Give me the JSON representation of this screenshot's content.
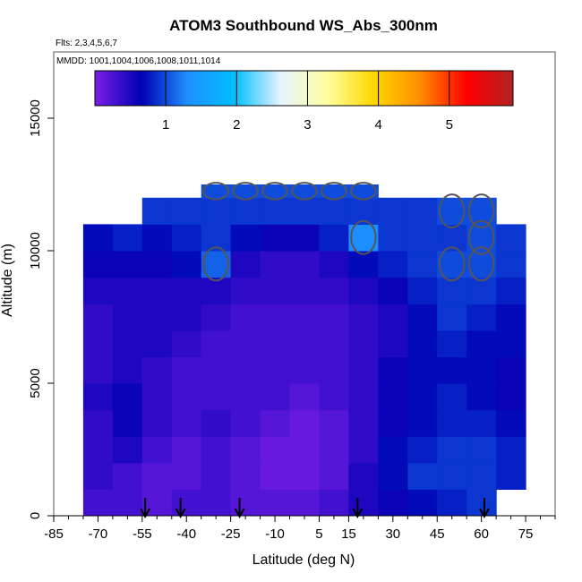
{
  "chart_data": {
    "type": "heatmap",
    "title": "ATOM3 Southbound WS_Abs_300nm",
    "subtitle_flights": "Flts: 2,3,4,5,6,7",
    "subtitle_dates": "MMDD: 1001,1004,1006,1008,1011,1014",
    "xlabel": "Latitude (deg N)",
    "ylabel": "Altitude (m)",
    "xlim": [
      -85,
      85
    ],
    "ylim": [
      0,
      17500
    ],
    "x_tick_labels": [
      "-85",
      "-70",
      "-55",
      "-40",
      "-25",
      "-10",
      "5",
      "15",
      "30",
      "45",
      "60",
      "75"
    ],
    "x_tick_values": [
      -85,
      -70,
      -55,
      -40,
      -25,
      -10,
      5,
      15,
      30,
      45,
      60,
      75
    ],
    "y_tick_labels": [
      "0",
      "5000",
      "10000",
      "15000"
    ],
    "y_tick_values": [
      0,
      5000,
      10000,
      15000
    ],
    "colorbar": {
      "min": 0,
      "max": 5.9,
      "tick_labels": [
        "1",
        "2",
        "3",
        "4",
        "5"
      ],
      "tick_values": [
        1,
        2,
        3,
        4,
        5
      ],
      "colors": [
        "#7a1fe6",
        "#0000b4",
        "#1e90ff",
        "#00bfff",
        "#e6f4ff",
        "#ffffa0",
        "#ffd700",
        "#ff8c00",
        "#ff0000",
        "#b22222"
      ]
    },
    "field": {
      "latitudes": [
        -70,
        -60,
        -50,
        -40,
        -30,
        -20,
        -10,
        0,
        10,
        20,
        30,
        40,
        50,
        60,
        70
      ],
      "altitude_bands": [
        {
          "alt_range": [
            0,
            1000
          ],
          "values": [
            0.3,
            0.3,
            0.2,
            0.3,
            0.3,
            0.2,
            0.2,
            0.2,
            0.3,
            0.5,
            0.6,
            0.7,
            0.8,
            0.9,
            null
          ]
        },
        {
          "alt_range": [
            1000,
            2000
          ],
          "values": [
            0.4,
            0.3,
            0.2,
            0.2,
            0.3,
            0.2,
            0.1,
            0.1,
            0.2,
            0.5,
            0.7,
            0.9,
            0.9,
            0.9,
            0.8
          ]
        },
        {
          "alt_range": [
            2000,
            3000
          ],
          "values": [
            0.4,
            0.5,
            0.3,
            0.2,
            0.3,
            0.2,
            0.1,
            0.1,
            0.2,
            0.4,
            0.7,
            0.8,
            0.9,
            0.9,
            0.8
          ]
        },
        {
          "alt_range": [
            3000,
            4000
          ],
          "values": [
            0.4,
            0.6,
            0.4,
            0.3,
            0.4,
            0.3,
            0.2,
            0.1,
            0.2,
            0.4,
            0.6,
            0.7,
            0.8,
            0.8,
            0.7
          ]
        },
        {
          "alt_range": [
            4000,
            5000
          ],
          "values": [
            0.5,
            0.6,
            0.4,
            0.3,
            0.3,
            0.3,
            0.3,
            0.2,
            0.3,
            0.4,
            0.6,
            0.7,
            0.8,
            0.7,
            0.6
          ]
        },
        {
          "alt_range": [
            5000,
            6000
          ],
          "values": [
            0.4,
            0.5,
            0.4,
            0.3,
            0.3,
            0.3,
            0.3,
            0.3,
            0.3,
            0.4,
            0.6,
            0.7,
            0.7,
            0.7,
            0.6
          ]
        },
        {
          "alt_range": [
            6000,
            7000
          ],
          "values": [
            0.4,
            0.5,
            0.5,
            0.4,
            0.3,
            0.3,
            0.3,
            0.3,
            0.3,
            0.4,
            0.5,
            0.7,
            0.8,
            0.7,
            0.7
          ]
        },
        {
          "alt_range": [
            7000,
            8000
          ],
          "values": [
            0.4,
            0.5,
            0.5,
            0.5,
            0.4,
            0.3,
            0.3,
            0.3,
            0.3,
            0.4,
            0.5,
            0.7,
            0.9,
            0.8,
            0.7
          ]
        },
        {
          "alt_range": [
            8000,
            9000
          ],
          "values": [
            0.5,
            0.5,
            0.5,
            0.5,
            0.5,
            0.4,
            0.4,
            0.4,
            0.4,
            0.5,
            0.6,
            0.8,
            0.9,
            0.9,
            0.8
          ]
        },
        {
          "alt_range": [
            9000,
            10000
          ],
          "values": [
            0.6,
            0.6,
            0.6,
            0.7,
            1.1,
            0.5,
            0.4,
            0.4,
            0.5,
            0.7,
            0.8,
            0.9,
            1.0,
            1.0,
            0.9
          ]
        },
        {
          "alt_range": [
            10000,
            11000
          ],
          "values": [
            0.7,
            0.8,
            0.7,
            0.8,
            0.9,
            0.7,
            0.6,
            0.6,
            0.8,
            1.3,
            0.9,
            0.9,
            0.9,
            1.0,
            0.9
          ]
        },
        {
          "alt_range": [
            11000,
            12000
          ],
          "values": [
            null,
            null,
            0.9,
            0.9,
            0.9,
            0.9,
            0.9,
            0.9,
            0.9,
            0.9,
            0.9,
            0.9,
            1.0,
            1.0,
            null
          ]
        },
        {
          "alt_range": [
            12000,
            12500
          ],
          "values": [
            null,
            null,
            null,
            null,
            1.0,
            1.0,
            1.0,
            1.0,
            1.0,
            1.0,
            null,
            null,
            null,
            null,
            null
          ]
        }
      ],
      "contour_level": 1,
      "contour_label": "1"
    },
    "arrow_latitudes": [
      -54,
      -42,
      -22,
      18,
      61
    ]
  }
}
